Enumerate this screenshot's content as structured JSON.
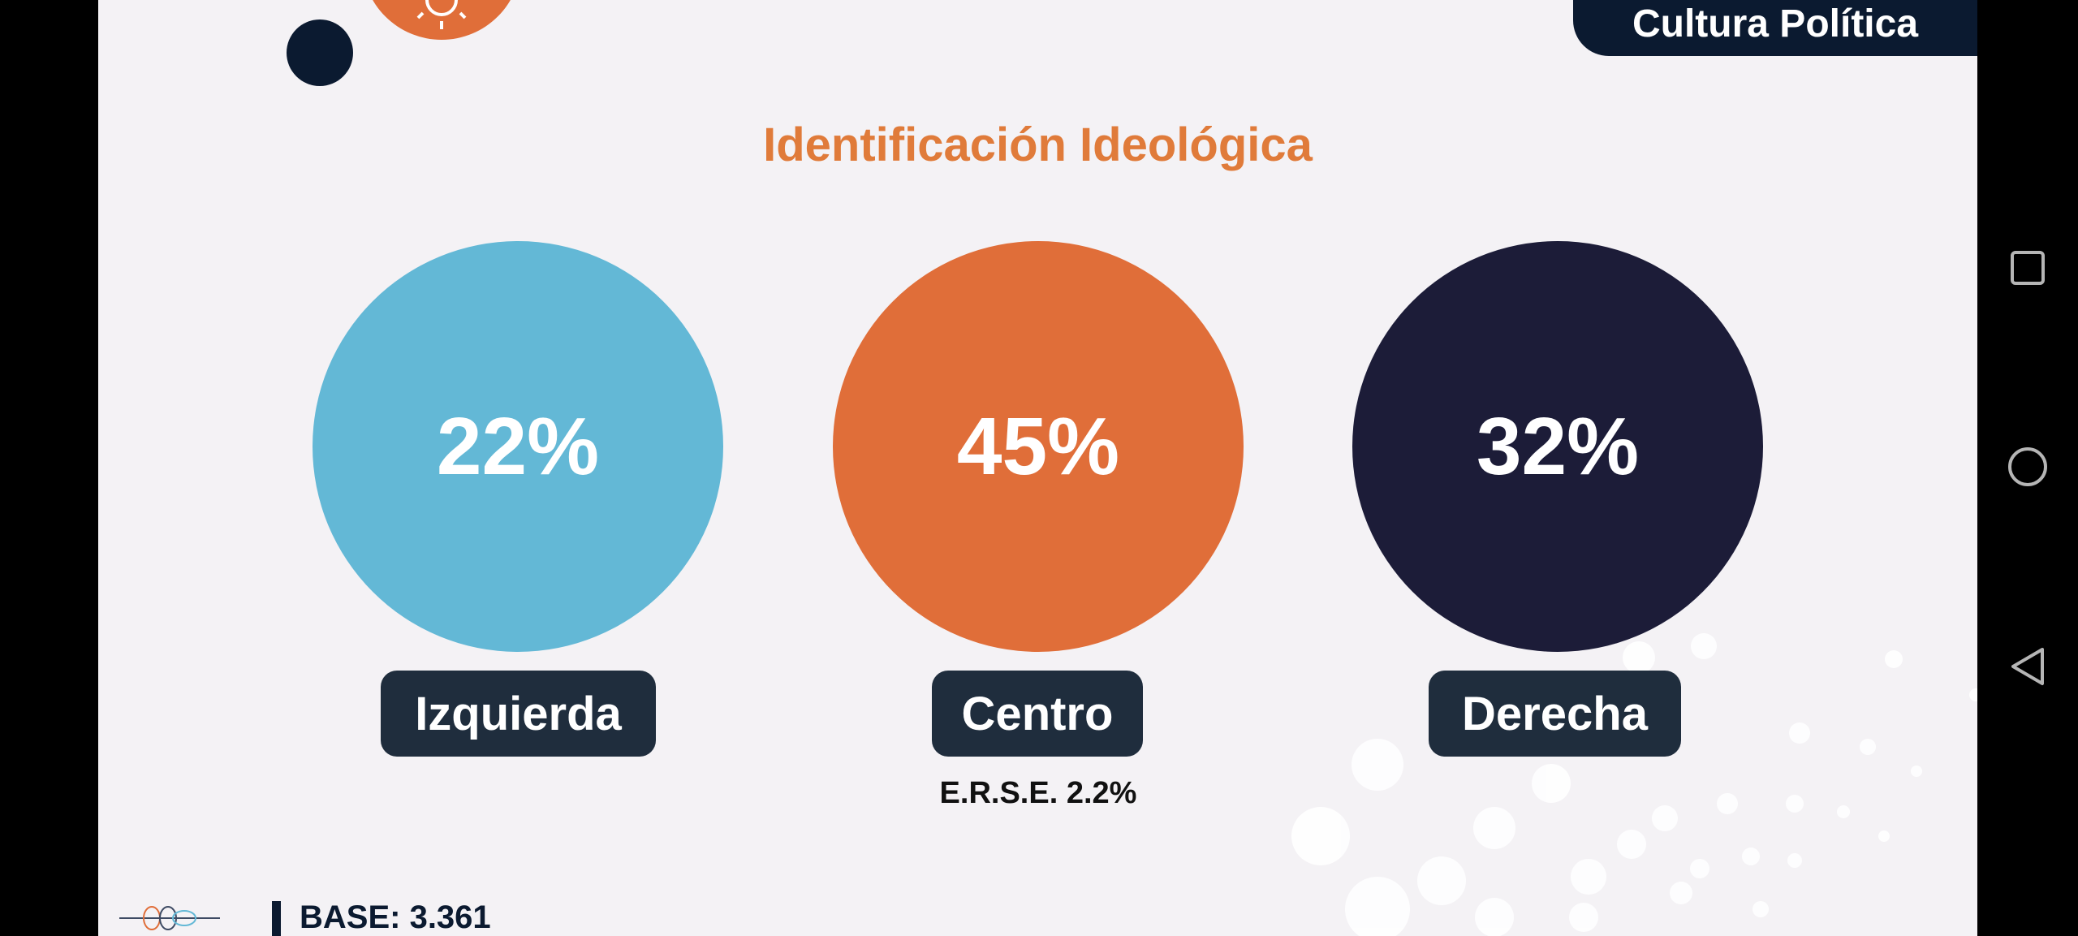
{
  "header": {
    "tag": "Cultura Política",
    "title": "Identificación Ideológica"
  },
  "items": [
    {
      "value": "22%",
      "label": "Izquierda"
    },
    {
      "value": "45%",
      "label": "Centro"
    },
    {
      "value": "32%",
      "label": "Derecha"
    }
  ],
  "note": "E.R.S.E. 2.2%",
  "base": "BASE: 3.361"
}
